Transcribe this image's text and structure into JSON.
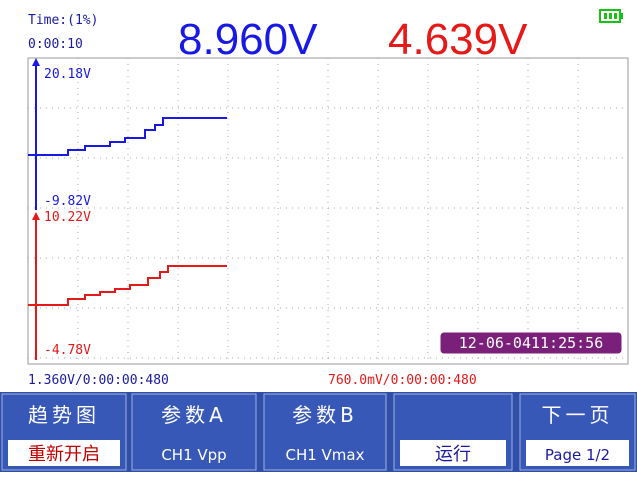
{
  "header": {
    "time_label": "Time:(1%)",
    "elapsed": "0:00:10",
    "reading_a": "8.960V",
    "reading_b": "4.639V"
  },
  "plot": {
    "ch1_top": "20.18V",
    "ch1_bottom": "-9.82V",
    "ch2_top": "10.22V",
    "ch2_bottom": "-4.78V",
    "timestamp": "12-06-0411:25:56"
  },
  "footer": {
    "ch1_scale": "1.360V/0:00:00:480",
    "ch2_scale": "760.0mV/0:00:00:480"
  },
  "menu": [
    {
      "label": "趋势图",
      "value": "重新开启"
    },
    {
      "label": "参数A",
      "value": "CH1 Vpp"
    },
    {
      "label": "参数B",
      "value": "CH1 Vmax"
    },
    {
      "value": "运行"
    },
    {
      "label": "下一页",
      "value": "Page 1/2"
    }
  ]
}
